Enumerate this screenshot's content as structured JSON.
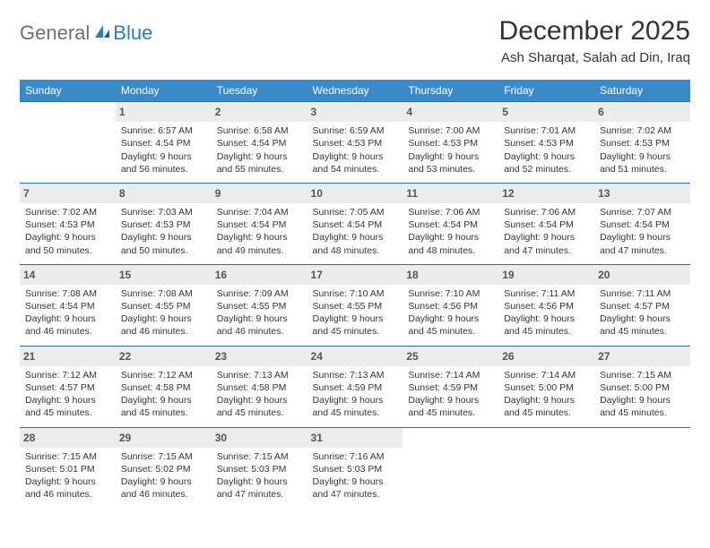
{
  "logo": {
    "text1": "General",
    "text2": "Blue"
  },
  "title": "December 2025",
  "location": "Ash Sharqat, Salah ad Din, Iraq",
  "colors": {
    "header_bg": "#3a8ac9",
    "header_text": "#ffffff",
    "row_divider": "#2f6da3",
    "daynum_bg": "#ececec",
    "logo_gray": "#6e6e6e",
    "logo_blue": "#2f7bbf"
  },
  "dow": [
    "Sunday",
    "Monday",
    "Tuesday",
    "Wednesday",
    "Thursday",
    "Friday",
    "Saturday"
  ],
  "weeks": [
    [
      null,
      {
        "n": "1",
        "sunrise": "6:57 AM",
        "sunset": "4:54 PM",
        "daylight": "9 hours and 56 minutes."
      },
      {
        "n": "2",
        "sunrise": "6:58 AM",
        "sunset": "4:54 PM",
        "daylight": "9 hours and 55 minutes."
      },
      {
        "n": "3",
        "sunrise": "6:59 AM",
        "sunset": "4:53 PM",
        "daylight": "9 hours and 54 minutes."
      },
      {
        "n": "4",
        "sunrise": "7:00 AM",
        "sunset": "4:53 PM",
        "daylight": "9 hours and 53 minutes."
      },
      {
        "n": "5",
        "sunrise": "7:01 AM",
        "sunset": "4:53 PM",
        "daylight": "9 hours and 52 minutes."
      },
      {
        "n": "6",
        "sunrise": "7:02 AM",
        "sunset": "4:53 PM",
        "daylight": "9 hours and 51 minutes."
      }
    ],
    [
      {
        "n": "7",
        "sunrise": "7:02 AM",
        "sunset": "4:53 PM",
        "daylight": "9 hours and 50 minutes."
      },
      {
        "n": "8",
        "sunrise": "7:03 AM",
        "sunset": "4:53 PM",
        "daylight": "9 hours and 50 minutes."
      },
      {
        "n": "9",
        "sunrise": "7:04 AM",
        "sunset": "4:54 PM",
        "daylight": "9 hours and 49 minutes."
      },
      {
        "n": "10",
        "sunrise": "7:05 AM",
        "sunset": "4:54 PM",
        "daylight": "9 hours and 48 minutes."
      },
      {
        "n": "11",
        "sunrise": "7:06 AM",
        "sunset": "4:54 PM",
        "daylight": "9 hours and 48 minutes."
      },
      {
        "n": "12",
        "sunrise": "7:06 AM",
        "sunset": "4:54 PM",
        "daylight": "9 hours and 47 minutes."
      },
      {
        "n": "13",
        "sunrise": "7:07 AM",
        "sunset": "4:54 PM",
        "daylight": "9 hours and 47 minutes."
      }
    ],
    [
      {
        "n": "14",
        "sunrise": "7:08 AM",
        "sunset": "4:54 PM",
        "daylight": "9 hours and 46 minutes."
      },
      {
        "n": "15",
        "sunrise": "7:08 AM",
        "sunset": "4:55 PM",
        "daylight": "9 hours and 46 minutes."
      },
      {
        "n": "16",
        "sunrise": "7:09 AM",
        "sunset": "4:55 PM",
        "daylight": "9 hours and 46 minutes."
      },
      {
        "n": "17",
        "sunrise": "7:10 AM",
        "sunset": "4:55 PM",
        "daylight": "9 hours and 45 minutes."
      },
      {
        "n": "18",
        "sunrise": "7:10 AM",
        "sunset": "4:56 PM",
        "daylight": "9 hours and 45 minutes."
      },
      {
        "n": "19",
        "sunrise": "7:11 AM",
        "sunset": "4:56 PM",
        "daylight": "9 hours and 45 minutes."
      },
      {
        "n": "20",
        "sunrise": "7:11 AM",
        "sunset": "4:57 PM",
        "daylight": "9 hours and 45 minutes."
      }
    ],
    [
      {
        "n": "21",
        "sunrise": "7:12 AM",
        "sunset": "4:57 PM",
        "daylight": "9 hours and 45 minutes."
      },
      {
        "n": "22",
        "sunrise": "7:12 AM",
        "sunset": "4:58 PM",
        "daylight": "9 hours and 45 minutes."
      },
      {
        "n": "23",
        "sunrise": "7:13 AM",
        "sunset": "4:58 PM",
        "daylight": "9 hours and 45 minutes."
      },
      {
        "n": "24",
        "sunrise": "7:13 AM",
        "sunset": "4:59 PM",
        "daylight": "9 hours and 45 minutes."
      },
      {
        "n": "25",
        "sunrise": "7:14 AM",
        "sunset": "4:59 PM",
        "daylight": "9 hours and 45 minutes."
      },
      {
        "n": "26",
        "sunrise": "7:14 AM",
        "sunset": "5:00 PM",
        "daylight": "9 hours and 45 minutes."
      },
      {
        "n": "27",
        "sunrise": "7:15 AM",
        "sunset": "5:00 PM",
        "daylight": "9 hours and 45 minutes."
      }
    ],
    [
      {
        "n": "28",
        "sunrise": "7:15 AM",
        "sunset": "5:01 PM",
        "daylight": "9 hours and 46 minutes."
      },
      {
        "n": "29",
        "sunrise": "7:15 AM",
        "sunset": "5:02 PM",
        "daylight": "9 hours and 46 minutes."
      },
      {
        "n": "30",
        "sunrise": "7:15 AM",
        "sunset": "5:03 PM",
        "daylight": "9 hours and 47 minutes."
      },
      {
        "n": "31",
        "sunrise": "7:16 AM",
        "sunset": "5:03 PM",
        "daylight": "9 hours and 47 minutes."
      },
      null,
      null,
      null
    ]
  ],
  "labels": {
    "sunrise": "Sunrise:",
    "sunset": "Sunset:",
    "daylight": "Daylight:"
  }
}
